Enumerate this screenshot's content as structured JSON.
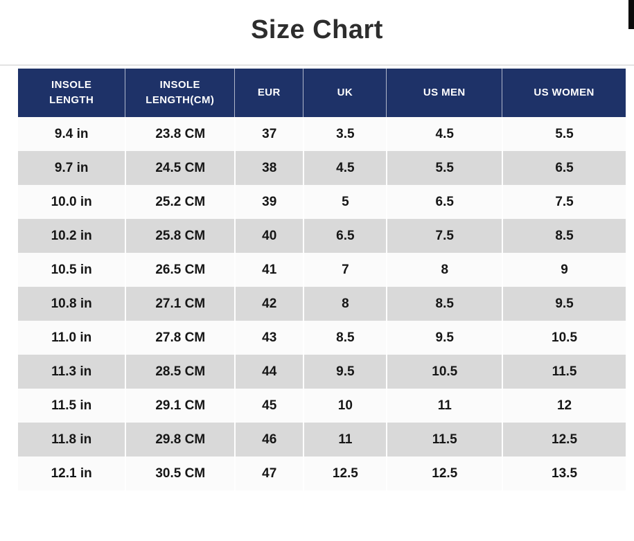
{
  "page": {
    "title": "Size Chart"
  },
  "colors": {
    "header_bg": "#1e3268",
    "header_text": "#ffffff",
    "stripe_gray": "#d9d9d9",
    "stripe_white": "#fbfbfb",
    "title_text": "#2d2d2d",
    "divider_line": "#e3e3e3",
    "top_right_bar": "#0a0a0a"
  },
  "chart_data": {
    "type": "table",
    "title": "Size Chart",
    "columns": [
      "INSOLE LENGTH",
      "INSOLE LENGTH(CM)",
      "EUR",
      "UK",
      "US MEN",
      "US WOMEN"
    ],
    "rows": [
      [
        "9.4 in",
        "23.8 CM",
        "37",
        "3.5",
        "4.5",
        "5.5"
      ],
      [
        "9.7 in",
        "24.5 CM",
        "38",
        "4.5",
        "5.5",
        "6.5"
      ],
      [
        "10.0 in",
        "25.2 CM",
        "39",
        "5",
        "6.5",
        "7.5"
      ],
      [
        "10.2 in",
        "25.8 CM",
        "40",
        "6.5",
        "7.5",
        "8.5"
      ],
      [
        "10.5 in",
        "26.5 CM",
        "41",
        "7",
        "8",
        "9"
      ],
      [
        "10.8 in",
        "27.1 CM",
        "42",
        "8",
        "8.5",
        "9.5"
      ],
      [
        "11.0 in",
        "27.8 CM",
        "43",
        "8.5",
        "9.5",
        "10.5"
      ],
      [
        "11.3 in",
        "28.5 CM",
        "44",
        "9.5",
        "10.5",
        "11.5"
      ],
      [
        "11.5 in",
        "29.1 CM",
        "45",
        "10",
        "11",
        "12"
      ],
      [
        "11.8 in",
        "29.8 CM",
        "46",
        "11",
        "11.5",
        "12.5"
      ],
      [
        "12.1 in",
        "30.5 CM",
        "47",
        "12.5",
        "12.5",
        "13.5"
      ]
    ]
  }
}
